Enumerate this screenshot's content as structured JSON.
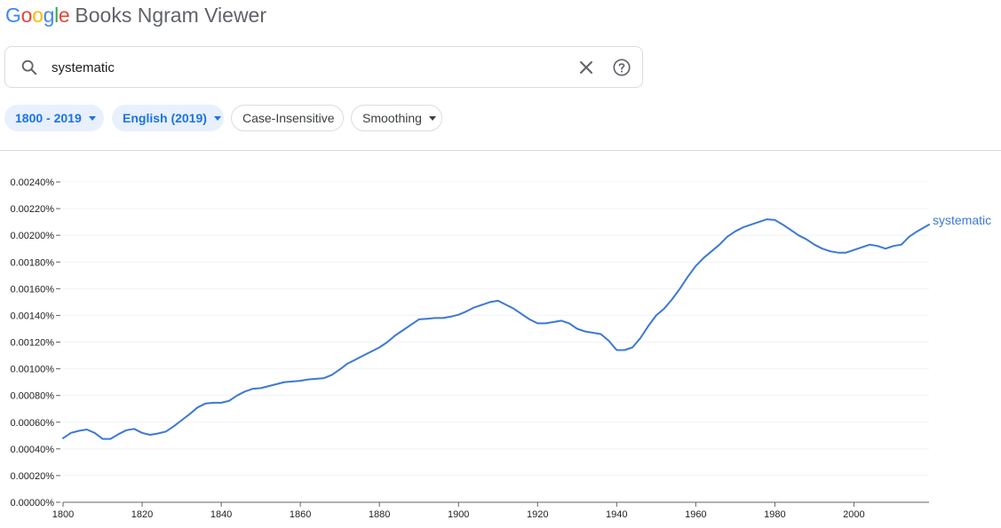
{
  "header": {
    "logo_letters": [
      {
        "ch": "G",
        "color": "#4285F4"
      },
      {
        "ch": "o",
        "color": "#EA4335"
      },
      {
        "ch": "o",
        "color": "#FBBC05"
      },
      {
        "ch": "g",
        "color": "#4285F4"
      },
      {
        "ch": "l",
        "color": "#34A853"
      },
      {
        "ch": "e",
        "color": "#EA4335"
      }
    ],
    "app_title": "Books Ngram Viewer"
  },
  "search": {
    "value": "systematic",
    "icon": "search-icon",
    "clear_icon": "close-icon",
    "help_icon": "help-circle-icon"
  },
  "filters": {
    "year_range": "1800 - 2019",
    "corpus": "English (2019)",
    "case": "Case-Insensitive",
    "smoothing": "Smoothing"
  },
  "colors": {
    "accent": "#1a73e8",
    "series": "#3c78d8",
    "chip_bg": "#e8f0fe"
  },
  "chart_data": {
    "type": "line",
    "xlim": [
      1800,
      2019
    ],
    "ylim": [
      0,
      0.0024
    ],
    "grid": true,
    "x_ticks": [
      1800,
      1820,
      1840,
      1860,
      1880,
      1900,
      1920,
      1940,
      1960,
      1980,
      2000
    ],
    "x_tick_labels": [
      "1800",
      "1820",
      "1840",
      "1860",
      "1880",
      "1900",
      "1920",
      "1940",
      "1960",
      "1980",
      "2000"
    ],
    "y_ticks": [
      0,
      0.0002,
      0.0004,
      0.0006,
      0.0008,
      0.001,
      0.0012,
      0.0014,
      0.0016,
      0.0018,
      0.002,
      0.0022,
      0.0024
    ],
    "y_tick_labels": [
      "0.00000%",
      "0.00020%",
      "0.00040%",
      "0.00060%",
      "0.00080%",
      "0.00100%",
      "0.00120%",
      "0.00140%",
      "0.00160%",
      "0.00180%",
      "0.00200%",
      "0.00220%",
      "0.00240%"
    ],
    "series": [
      {
        "name": "systematic",
        "color": "#3c78d8",
        "x": [
          1800,
          1802,
          1804,
          1806,
          1808,
          1810,
          1812,
          1814,
          1816,
          1818,
          1820,
          1822,
          1824,
          1826,
          1828,
          1830,
          1832,
          1834,
          1836,
          1838,
          1840,
          1842,
          1844,
          1846,
          1848,
          1850,
          1852,
          1854,
          1856,
          1858,
          1860,
          1862,
          1864,
          1866,
          1868,
          1870,
          1872,
          1874,
          1876,
          1878,
          1880,
          1882,
          1884,
          1886,
          1888,
          1890,
          1892,
          1894,
          1896,
          1898,
          1900,
          1902,
          1904,
          1906,
          1908,
          1910,
          1912,
          1914,
          1916,
          1918,
          1920,
          1922,
          1924,
          1926,
          1928,
          1930,
          1932,
          1934,
          1936,
          1938,
          1940,
          1942,
          1944,
          1946,
          1948,
          1950,
          1952,
          1954,
          1956,
          1958,
          1960,
          1962,
          1964,
          1966,
          1968,
          1970,
          1972,
          1974,
          1976,
          1978,
          1980,
          1982,
          1984,
          1986,
          1988,
          1990,
          1992,
          1994,
          1996,
          1998,
          2000,
          2002,
          2004,
          2006,
          2008,
          2010,
          2012,
          2014,
          2016,
          2019
        ],
        "values": [
          0.00048,
          0.00052,
          0.000535,
          0.000545,
          0.00052,
          0.000475,
          0.000475,
          0.00051,
          0.00054,
          0.00055,
          0.00052,
          0.000505,
          0.000515,
          0.00053,
          0.00057,
          0.000615,
          0.00066,
          0.00071,
          0.00074,
          0.000745,
          0.000745,
          0.00076,
          0.0008,
          0.00083,
          0.00085,
          0.000855,
          0.00087,
          0.000885,
          0.0009,
          0.000905,
          0.00091,
          0.00092,
          0.000925,
          0.00093,
          0.000955,
          0.000995,
          0.00104,
          0.00107,
          0.0011,
          0.00113,
          0.00116,
          0.0012,
          0.00125,
          0.00129,
          0.00133,
          0.00137,
          0.001375,
          0.00138,
          0.00138,
          0.00139,
          0.001405,
          0.00143,
          0.00146,
          0.00148,
          0.0015,
          0.00151,
          0.00148,
          0.00145,
          0.00141,
          0.00137,
          0.00134,
          0.00134,
          0.00135,
          0.00136,
          0.00134,
          0.0013,
          0.00128,
          0.00127,
          0.00126,
          0.00121,
          0.00114,
          0.00114,
          0.00116,
          0.00123,
          0.00132,
          0.0014,
          0.00145,
          0.00152,
          0.0016,
          0.00169,
          0.00177,
          0.00183,
          0.00188,
          0.00193,
          0.00199,
          0.00203,
          0.00206,
          0.00208,
          0.0021,
          0.00212,
          0.002115,
          0.00208,
          0.00204,
          0.002,
          0.00197,
          0.00193,
          0.0019,
          0.00188,
          0.00187,
          0.00187,
          0.00189,
          0.00191,
          0.00193,
          0.00192,
          0.0019,
          0.00192,
          0.00193,
          0.00199,
          0.00203,
          0.00208
        ]
      }
    ]
  }
}
